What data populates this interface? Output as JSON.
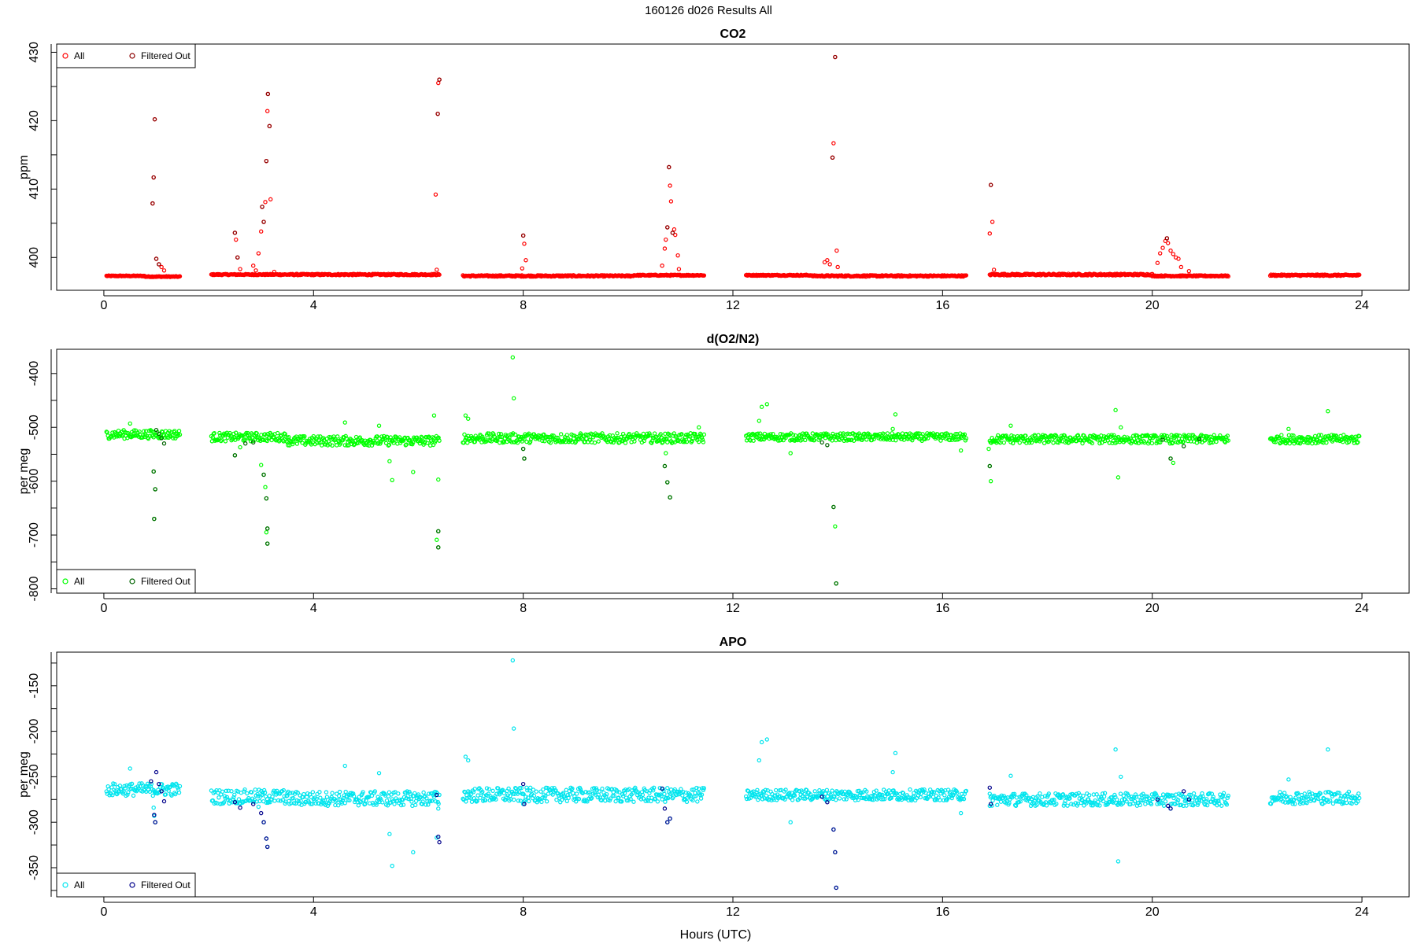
{
  "figure": {
    "title": "160126   d026   Results All",
    "xlabel": "Hours (UTC)"
  },
  "legend": {
    "all_label": "All",
    "filtered_label": "Filtered Out"
  },
  "chart_data": [
    {
      "type": "scatter",
      "title": "CO2",
      "ylabel": "ppm",
      "xlim": [
        -0.9,
        24.9
      ],
      "ylim": [
        395.2,
        431.2
      ],
      "xticks": [
        0,
        4,
        8,
        12,
        16,
        20,
        24
      ],
      "yticks": [
        400,
        410,
        420,
        430
      ],
      "legend_position": "top-left",
      "colors": {
        "all": "#ff0000",
        "filtered": "#8b0000"
      },
      "baseline": [
        {
          "x": [
            0.05,
            0.78
          ],
          "y": 397.3,
          "jitter": 0.06
        },
        {
          "x": [
            0.78,
            1.45
          ],
          "y": 397.2,
          "jitter": 0.06
        },
        {
          "x": [
            2.05,
            3.6
          ],
          "y": 397.5,
          "jitter": 0.08
        },
        {
          "x": [
            3.6,
            6.4
          ],
          "y": 397.5,
          "jitter": 0.1
        },
        {
          "x": [
            6.85,
            10.1
          ],
          "y": 397.3,
          "jitter": 0.1
        },
        {
          "x": [
            10.1,
            11.45
          ],
          "y": 397.4,
          "jitter": 0.08
        },
        {
          "x": [
            12.25,
            13.5
          ],
          "y": 397.4,
          "jitter": 0.08
        },
        {
          "x": [
            13.5,
            16.45
          ],
          "y": 397.3,
          "jitter": 0.1
        },
        {
          "x": [
            16.9,
            20.0
          ],
          "y": 397.5,
          "jitter": 0.12
        },
        {
          "x": [
            20.0,
            21.45
          ],
          "y": 397.3,
          "jitter": 0.08
        },
        {
          "x": [
            22.25,
            23.95
          ],
          "y": 397.4,
          "jitter": 0.1
        }
      ],
      "all_points": [
        [
          0.97,
          420.2
        ],
        [
          0.95,
          411.7
        ],
        [
          0.93,
          407.9
        ],
        [
          1.0,
          399.8
        ],
        [
          1.05,
          399.0
        ],
        [
          1.1,
          398.6
        ],
        [
          1.15,
          398.1
        ],
        [
          2.5,
          403.6
        ],
        [
          2.52,
          402.6
        ],
        [
          2.55,
          400.0
        ],
        [
          2.6,
          398.3
        ],
        [
          2.85,
          398.8
        ],
        [
          2.9,
          398.1
        ],
        [
          2.95,
          400.6
        ],
        [
          3.0,
          403.8
        ],
        [
          3.02,
          407.4
        ],
        [
          3.05,
          405.2
        ],
        [
          3.08,
          408.1
        ],
        [
          3.1,
          414.1
        ],
        [
          3.12,
          421.4
        ],
        [
          3.13,
          423.9
        ],
        [
          3.16,
          419.2
        ],
        [
          3.18,
          408.5
        ],
        [
          3.25,
          397.9
        ],
        [
          6.33,
          409.2
        ],
        [
          6.37,
          421.0
        ],
        [
          6.38,
          425.5
        ],
        [
          6.4,
          426.0
        ],
        [
          6.35,
          398.2
        ],
        [
          8.0,
          403.2
        ],
        [
          8.02,
          402.0
        ],
        [
          8.05,
          399.6
        ],
        [
          7.98,
          398.4
        ],
        [
          10.65,
          398.8
        ],
        [
          10.7,
          401.3
        ],
        [
          10.72,
          402.6
        ],
        [
          10.75,
          404.4
        ],
        [
          10.78,
          413.2
        ],
        [
          10.8,
          410.5
        ],
        [
          10.82,
          408.2
        ],
        [
          10.85,
          403.6
        ],
        [
          10.88,
          404.1
        ],
        [
          10.9,
          403.3
        ],
        [
          10.95,
          400.3
        ],
        [
          10.97,
          398.3
        ],
        [
          13.75,
          399.3
        ],
        [
          13.8,
          399.6
        ],
        [
          13.85,
          399.0
        ],
        [
          13.9,
          414.6
        ],
        [
          13.92,
          416.7
        ],
        [
          13.95,
          429.3
        ],
        [
          13.98,
          401.0
        ],
        [
          14.0,
          398.6
        ],
        [
          16.9,
          403.5
        ],
        [
          16.92,
          410.6
        ],
        [
          16.95,
          405.2
        ],
        [
          16.98,
          398.2
        ],
        [
          20.1,
          399.2
        ],
        [
          20.15,
          400.6
        ],
        [
          20.2,
          401.4
        ],
        [
          20.25,
          402.4
        ],
        [
          20.28,
          402.8
        ],
        [
          20.3,
          402.1
        ],
        [
          20.35,
          401.0
        ],
        [
          20.4,
          400.5
        ],
        [
          20.45,
          400.0
        ],
        [
          20.5,
          399.8
        ],
        [
          20.55,
          398.6
        ],
        [
          20.7,
          398.0
        ]
      ],
      "filtered_points": [
        [
          0.97,
          420.2
        ],
        [
          0.95,
          411.7
        ],
        [
          0.93,
          407.9
        ],
        [
          1.0,
          399.8
        ],
        [
          1.05,
          399.0
        ],
        [
          2.5,
          403.6
        ],
        [
          2.55,
          400.0
        ],
        [
          3.02,
          407.4
        ],
        [
          3.05,
          405.2
        ],
        [
          3.1,
          414.1
        ],
        [
          3.13,
          423.9
        ],
        [
          3.16,
          419.2
        ],
        [
          6.37,
          421.0
        ],
        [
          6.4,
          426.0
        ],
        [
          8.0,
          403.2
        ],
        [
          10.75,
          404.4
        ],
        [
          10.78,
          413.2
        ],
        [
          10.85,
          403.6
        ],
        [
          13.9,
          414.6
        ],
        [
          13.95,
          429.3
        ],
        [
          16.92,
          410.6
        ],
        [
          20.28,
          402.8
        ]
      ]
    },
    {
      "type": "scatter",
      "title": "d(O2/N2)",
      "ylabel": "per meg",
      "xlim": [
        -0.9,
        24.9
      ],
      "ylim": [
        -808,
        -355
      ],
      "xticks": [
        0,
        4,
        8,
        12,
        16,
        20,
        24
      ],
      "yticks": [
        -400,
        -500,
        -600,
        -700,
        -800
      ],
      "legend_position": "bottom-left",
      "colors": {
        "all": "#00ff00",
        "filtered": "#006400"
      },
      "baseline": [
        {
          "x": [
            0.05,
            1.45
          ],
          "y": -513,
          "jitter": 8
        },
        {
          "x": [
            2.05,
            3.5
          ],
          "y": -518,
          "jitter": 8
        },
        {
          "x": [
            3.5,
            6.4
          ],
          "y": -525,
          "jitter": 9
        },
        {
          "x": [
            6.85,
            11.45
          ],
          "y": -520,
          "jitter": 9
        },
        {
          "x": [
            12.25,
            16.45
          ],
          "y": -518,
          "jitter": 7
        },
        {
          "x": [
            16.9,
            21.45
          ],
          "y": -522,
          "jitter": 8
        },
        {
          "x": [
            22.25,
            23.95
          ],
          "y": -522,
          "jitter": 8
        }
      ],
      "all_points": [
        [
          0.5,
          -493
        ],
        [
          0.95,
          -582
        ],
        [
          0.98,
          -615
        ],
        [
          0.96,
          -670
        ],
        [
          1.05,
          -520
        ],
        [
          2.5,
          -552
        ],
        [
          2.6,
          -537
        ],
        [
          3.0,
          -570
        ],
        [
          3.05,
          -588
        ],
        [
          3.08,
          -611
        ],
        [
          3.1,
          -632
        ],
        [
          3.12,
          -688
        ],
        [
          3.1,
          -695
        ],
        [
          3.12,
          -716
        ],
        [
          4.6,
          -491
        ],
        [
          5.25,
          -497
        ],
        [
          5.45,
          -563
        ],
        [
          5.5,
          -598
        ],
        [
          5.9,
          -583
        ],
        [
          6.3,
          -478
        ],
        [
          6.38,
          -597
        ],
        [
          6.38,
          -693
        ],
        [
          6.35,
          -709
        ],
        [
          6.38,
          -723
        ],
        [
          6.9,
          -478
        ],
        [
          6.95,
          -484
        ],
        [
          7.8,
          -370
        ],
        [
          7.82,
          -446
        ],
        [
          8.0,
          -540
        ],
        [
          8.02,
          -558
        ],
        [
          10.7,
          -572
        ],
        [
          10.75,
          -602
        ],
        [
          10.8,
          -630
        ],
        [
          10.72,
          -548
        ],
        [
          11.35,
          -500
        ],
        [
          12.55,
          -462
        ],
        [
          12.65,
          -457
        ],
        [
          12.5,
          -488
        ],
        [
          13.1,
          -548
        ],
        [
          13.92,
          -648
        ],
        [
          13.95,
          -684
        ],
        [
          13.97,
          -790
        ],
        [
          15.1,
          -476
        ],
        [
          15.05,
          -503
        ],
        [
          16.35,
          -543
        ],
        [
          16.88,
          -540
        ],
        [
          16.9,
          -572
        ],
        [
          16.92,
          -600
        ],
        [
          17.3,
          -497
        ],
        [
          19.3,
          -468
        ],
        [
          19.35,
          -593
        ],
        [
          19.4,
          -500
        ],
        [
          20.35,
          -558
        ],
        [
          20.4,
          -566
        ],
        [
          23.35,
          -470
        ],
        [
          22.6,
          -503
        ]
      ],
      "filtered_points": [
        [
          1.0,
          -505
        ],
        [
          1.05,
          -512
        ],
        [
          1.1,
          -520
        ],
        [
          1.15,
          -530
        ],
        [
          0.95,
          -582
        ],
        [
          0.98,
          -615
        ],
        [
          0.96,
          -670
        ],
        [
          2.5,
          -552
        ],
        [
          2.7,
          -530
        ],
        [
          2.85,
          -528
        ],
        [
          3.05,
          -588
        ],
        [
          3.1,
          -632
        ],
        [
          3.12,
          -688
        ],
        [
          3.12,
          -716
        ],
        [
          6.38,
          -693
        ],
        [
          6.38,
          -723
        ],
        [
          8.0,
          -540
        ],
        [
          8.02,
          -558
        ],
        [
          10.7,
          -572
        ],
        [
          10.8,
          -630
        ],
        [
          10.75,
          -602
        ],
        [
          13.7,
          -528
        ],
        [
          13.8,
          -533
        ],
        [
          13.92,
          -648
        ],
        [
          13.97,
          -790
        ],
        [
          16.9,
          -572
        ],
        [
          20.2,
          -523
        ],
        [
          20.35,
          -558
        ],
        [
          20.6,
          -535
        ],
        [
          20.9,
          -522
        ]
      ]
    },
    {
      "type": "scatter",
      "title": "APO",
      "ylabel": "per meg",
      "xlim": [
        -0.9,
        24.9
      ],
      "ylim": [
        -382,
        -113
      ],
      "xticks": [
        0,
        4,
        8,
        12,
        16,
        20,
        24
      ],
      "yticks": [
        -150,
        -200,
        -250,
        -300,
        -350
      ],
      "legend_position": "bottom-left",
      "colors": {
        "all": "#00e5ee",
        "filtered": "#00008b"
      },
      "baseline": [
        {
          "x": [
            0.05,
            1.45
          ],
          "y": -264,
          "jitter": 7
        },
        {
          "x": [
            2.05,
            3.5
          ],
          "y": -272,
          "jitter": 8
        },
        {
          "x": [
            3.5,
            6.4
          ],
          "y": -274,
          "jitter": 8
        },
        {
          "x": [
            6.85,
            11.45
          ],
          "y": -270,
          "jitter": 8
        },
        {
          "x": [
            12.25,
            16.45
          ],
          "y": -270,
          "jitter": 6
        },
        {
          "x": [
            16.9,
            21.45
          ],
          "y": -275,
          "jitter": 7
        },
        {
          "x": [
            22.25,
            23.95
          ],
          "y": -273,
          "jitter": 7
        }
      ],
      "all_points": [
        [
          0.5,
          -241
        ],
        [
          0.95,
          -284
        ],
        [
          0.98,
          -300
        ],
        [
          0.96,
          -293
        ],
        [
          2.95,
          -283
        ],
        [
          3.05,
          -300
        ],
        [
          3.1,
          -318
        ],
        [
          3.12,
          -327
        ],
        [
          4.6,
          -238
        ],
        [
          5.25,
          -246
        ],
        [
          5.45,
          -313
        ],
        [
          5.5,
          -348
        ],
        [
          5.9,
          -333
        ],
        [
          6.38,
          -285
        ],
        [
          6.35,
          -317
        ],
        [
          6.9,
          -228
        ],
        [
          6.95,
          -232
        ],
        [
          7.8,
          -122
        ],
        [
          7.82,
          -197
        ],
        [
          8.0,
          -280
        ],
        [
          10.75,
          -300
        ],
        [
          10.8,
          -296
        ],
        [
          12.55,
          -212
        ],
        [
          12.65,
          -209
        ],
        [
          12.5,
          -232
        ],
        [
          13.1,
          -300
        ],
        [
          13.92,
          -308
        ],
        [
          13.95,
          -333
        ],
        [
          13.97,
          -372
        ],
        [
          15.1,
          -224
        ],
        [
          15.05,
          -245
        ],
        [
          16.35,
          -290
        ],
        [
          16.9,
          -282
        ],
        [
          17.3,
          -249
        ],
        [
          19.3,
          -220
        ],
        [
          19.35,
          -343
        ],
        [
          19.4,
          -250
        ],
        [
          20.35,
          -285
        ],
        [
          22.6,
          -253
        ],
        [
          23.35,
          -220
        ]
      ],
      "filtered_points": [
        [
          0.9,
          -255
        ],
        [
          1.0,
          -245
        ],
        [
          1.05,
          -258
        ],
        [
          1.1,
          -266
        ],
        [
          1.15,
          -277
        ],
        [
          0.98,
          -300
        ],
        [
          0.96,
          -292
        ],
        [
          2.5,
          -278
        ],
        [
          2.6,
          -284
        ],
        [
          2.85,
          -280
        ],
        [
          3.0,
          -290
        ],
        [
          3.05,
          -300
        ],
        [
          3.1,
          -318
        ],
        [
          3.12,
          -327
        ],
        [
          6.35,
          -270
        ],
        [
          6.38,
          -316
        ],
        [
          6.4,
          -322
        ],
        [
          8.0,
          -258
        ],
        [
          8.02,
          -280
        ],
        [
          10.65,
          -263
        ],
        [
          10.7,
          -285
        ],
        [
          10.75,
          -300
        ],
        [
          10.8,
          -296
        ],
        [
          13.7,
          -272
        ],
        [
          13.8,
          -278
        ],
        [
          13.92,
          -308
        ],
        [
          13.95,
          -333
        ],
        [
          13.97,
          -372
        ],
        [
          16.9,
          -262
        ],
        [
          16.92,
          -280
        ],
        [
          20.1,
          -275
        ],
        [
          20.3,
          -282
        ],
        [
          20.35,
          -285
        ],
        [
          20.6,
          -266
        ],
        [
          20.7,
          -275
        ]
      ]
    }
  ]
}
